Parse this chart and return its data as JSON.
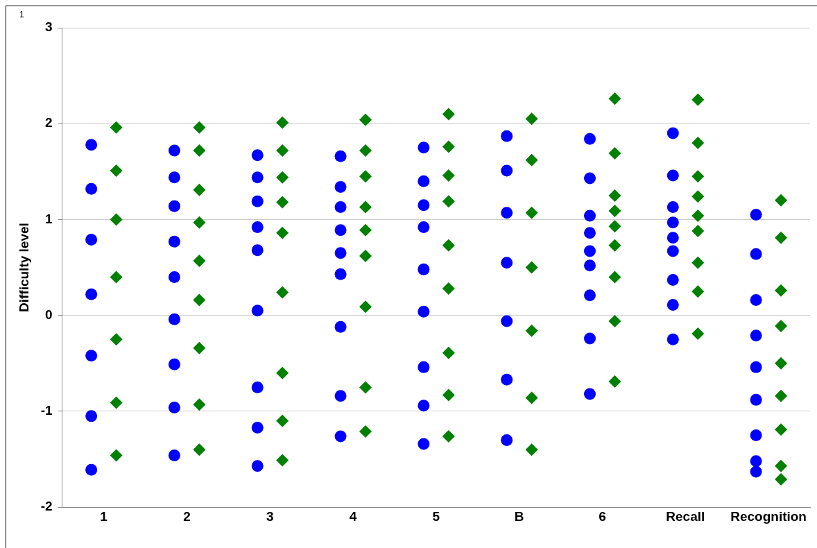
{
  "chart_data": {
    "type": "scatter",
    "ylabel": "Difficulty level",
    "categories": [
      "1",
      "2",
      "3",
      "4",
      "5",
      "B",
      "6",
      "Recall",
      "Recognition"
    ],
    "ylim": [
      -2,
      3
    ],
    "yticks": [
      -2,
      -1,
      0,
      1,
      2,
      3
    ],
    "grid": "y",
    "legend": false,
    "annotations": [
      "1"
    ],
    "series": [
      {
        "color": "#0000ff",
        "marker": "circle",
        "x": [
          "1",
          "1",
          "1",
          "1",
          "1",
          "1",
          "1",
          "2",
          "2",
          "2",
          "2",
          "2",
          "2",
          "2",
          "2",
          "2",
          "3",
          "3",
          "3",
          "3",
          "3",
          "3",
          "3",
          "3",
          "3",
          "4",
          "4",
          "4",
          "4",
          "4",
          "4",
          "4",
          "4",
          "4",
          "5",
          "5",
          "5",
          "5",
          "5",
          "5",
          "5",
          "5",
          "5",
          "B",
          "B",
          "B",
          "B",
          "B",
          "B",
          "B",
          "6",
          "6",
          "6",
          "6",
          "6",
          "6",
          "6",
          "6",
          "6",
          "Recall",
          "Recall",
          "Recall",
          "Recall",
          "Recall",
          "Recall",
          "Recall",
          "Recall",
          "Recall",
          "Recognition",
          "Recognition",
          "Recognition",
          "Recognition",
          "Recognition",
          "Recognition",
          "Recognition",
          "Recognition",
          "Recognition"
        ],
        "values": [
          1.78,
          1.32,
          0.79,
          0.22,
          -0.42,
          -1.05,
          -1.61,
          1.72,
          1.44,
          1.14,
          0.77,
          0.4,
          -0.04,
          -0.51,
          -0.96,
          -1.46,
          1.67,
          1.44,
          1.19,
          0.92,
          0.68,
          0.05,
          -0.75,
          -1.17,
          -1.57,
          1.66,
          1.34,
          1.13,
          0.89,
          0.65,
          0.43,
          -0.12,
          -0.84,
          -1.26,
          1.75,
          1.4,
          1.15,
          0.92,
          0.48,
          0.04,
          -0.54,
          -0.94,
          -1.34,
          1.87,
          1.51,
          1.07,
          0.55,
          -0.06,
          -0.67,
          -1.3,
          1.84,
          1.43,
          1.04,
          0.86,
          0.67,
          0.52,
          0.21,
          -0.24,
          -0.82,
          1.9,
          1.46,
          1.13,
          0.97,
          0.81,
          0.67,
          0.37,
          0.11,
          -0.25,
          1.05,
          0.64,
          0.16,
          -0.21,
          -0.54,
          -0.88,
          -1.25,
          -1.52,
          -1.63
        ]
      },
      {
        "color": "#008000",
        "marker": "diamond",
        "x": [
          "1",
          "1",
          "1",
          "1",
          "1",
          "1",
          "1",
          "2",
          "2",
          "2",
          "2",
          "2",
          "2",
          "2",
          "2",
          "2",
          "3",
          "3",
          "3",
          "3",
          "3",
          "3",
          "3",
          "3",
          "3",
          "4",
          "4",
          "4",
          "4",
          "4",
          "4",
          "4",
          "4",
          "4",
          "5",
          "5",
          "5",
          "5",
          "5",
          "5",
          "5",
          "5",
          "5",
          "B",
          "B",
          "B",
          "B",
          "B",
          "B",
          "B",
          "6",
          "6",
          "6",
          "6",
          "6",
          "6",
          "6",
          "6",
          "6",
          "Recall",
          "Recall",
          "Recall",
          "Recall",
          "Recall",
          "Recall",
          "Recall",
          "Recall",
          "Recall",
          "Recognition",
          "Recognition",
          "Recognition",
          "Recognition",
          "Recognition",
          "Recognition",
          "Recognition",
          "Recognition",
          "Recognition"
        ],
        "values": [
          1.96,
          1.51,
          1.0,
          0.4,
          -0.25,
          -0.91,
          -1.46,
          1.96,
          1.72,
          1.31,
          0.97,
          0.57,
          0.16,
          -0.34,
          -0.93,
          -1.4,
          2.01,
          1.72,
          1.44,
          1.18,
          0.86,
          0.24,
          -0.6,
          -1.1,
          -1.51,
          2.04,
          1.72,
          1.45,
          1.13,
          0.89,
          0.62,
          0.09,
          -0.75,
          -1.21,
          2.1,
          1.76,
          1.46,
          1.19,
          0.73,
          0.28,
          -0.39,
          -0.83,
          -1.26,
          2.05,
          1.62,
          1.07,
          0.5,
          -0.16,
          -0.86,
          -1.4,
          2.26,
          1.69,
          1.25,
          1.09,
          0.93,
          0.73,
          0.4,
          -0.06,
          -0.69,
          2.25,
          1.8,
          1.45,
          1.24,
          1.04,
          0.88,
          0.55,
          0.25,
          -0.19,
          1.2,
          0.81,
          0.26,
          -0.11,
          -0.5,
          -0.84,
          -1.19,
          -1.57,
          -1.71
        ]
      }
    ]
  }
}
